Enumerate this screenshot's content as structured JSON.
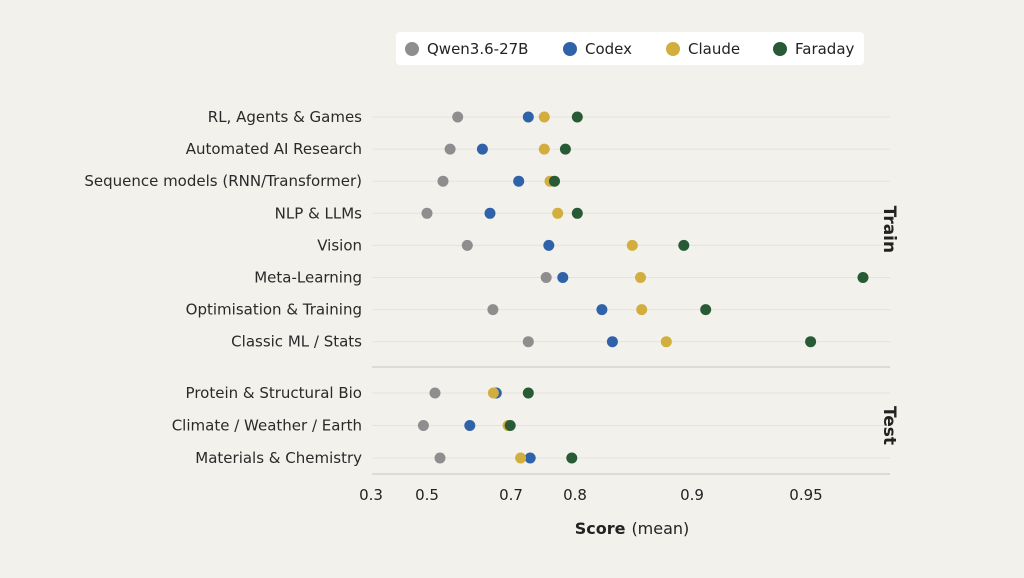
{
  "chart_data": {
    "type": "scatter",
    "xlabel_bold": "Score",
    "xlabel_rest": "(mean)",
    "x_ticks": [
      {
        "value": 0.3,
        "label": "0.3"
      },
      {
        "value": 0.5,
        "label": "0.5"
      },
      {
        "value": 0.7,
        "label": "0.7"
      },
      {
        "value": 0.8,
        "label": "0.8"
      },
      {
        "value": 0.9,
        "label": "0.9"
      },
      {
        "value": 0.95,
        "label": "0.95"
      }
    ],
    "legend_position": "top",
    "series": [
      {
        "name": "Qwen3.6-27B",
        "color": "#8e8e8e"
      },
      {
        "name": "Codex",
        "color": "#2f62a8"
      },
      {
        "name": "Claude",
        "color": "#d2ae3f"
      },
      {
        "name": "Faraday",
        "color": "#285a35"
      }
    ],
    "groups": [
      {
        "label": "Train",
        "categories": [
          {
            "name": "RL, Agents & Games",
            "values": [
              0.573,
              0.727,
              0.752,
              0.802
            ]
          },
          {
            "name": "Automated AI Research",
            "values": [
              0.555,
              0.632,
              0.752,
              0.785
            ]
          },
          {
            "name": "Sequence models (RNN/Transformer)",
            "values": [
              0.538,
              0.712,
              0.761,
              0.768
            ]
          },
          {
            "name": "NLP & LLMs",
            "values": [
              0.5,
              0.65,
              0.773,
              0.802
            ]
          },
          {
            "name": "Vision",
            "values": [
              0.596,
              0.759,
              0.849,
              0.893
            ]
          },
          {
            "name": "Meta-Learning",
            "values": [
              0.755,
              0.781,
              0.856,
              0.975
            ]
          },
          {
            "name": "Optimisation & Training",
            "values": [
              0.657,
              0.823,
              0.857,
              0.906
            ]
          },
          {
            "name": "Classic ML / Stats",
            "values": [
              0.727,
              0.832,
              0.878,
              0.952
            ]
          }
        ]
      },
      {
        "label": "Test",
        "categories": [
          {
            "name": "Protein & Structural Bio",
            "values": [
              0.519,
              0.665,
              0.658,
              0.727
            ]
          },
          {
            "name": "Climate / Weather / Earth",
            "values": [
              0.487,
              0.602,
              0.693,
              0.698
            ]
          },
          {
            "name": "Materials & Chemistry",
            "values": [
              0.531,
              0.73,
              0.715,
              0.795
            ]
          }
        ]
      }
    ]
  }
}
